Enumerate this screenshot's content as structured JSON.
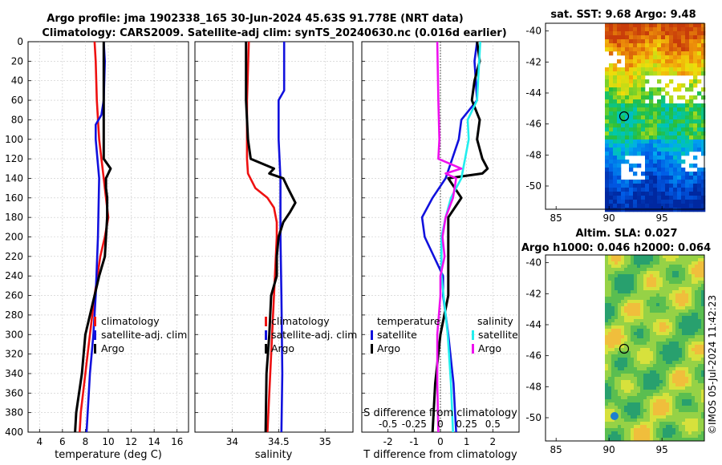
{
  "title": {
    "line1": "Argo profile: jma 1902338_165 30-Jun-2024 45.63S 91.778E (NRT data)",
    "line2": "Climatology: CARS2009. Satellite-adj clim: synTS_20240630.nc (0.016d earlier)"
  },
  "colors": {
    "climatology": "#ee1111",
    "satellite": "#1111dd",
    "argo": "#000000",
    "sal_satellite": "#22eeee",
    "sal_argo": "#ee11ee"
  },
  "depth_axis": {
    "ticks": [
      "0",
      "20",
      "40",
      "60",
      "80",
      "100",
      "120",
      "140",
      "160",
      "180",
      "200",
      "220",
      "240",
      "260",
      "280",
      "300",
      "320",
      "340",
      "360",
      "380",
      "400"
    ]
  },
  "chart_data": [
    {
      "type": "line",
      "name": "temperature",
      "xlabel": "temperature (deg C)",
      "ylabel": "depth",
      "xlim": [
        3,
        17
      ],
      "ylim": [
        400,
        0
      ],
      "xticks": [
        4,
        6,
        8,
        10,
        12,
        14,
        16
      ],
      "xtick_labels": [
        "4",
        "6",
        "8",
        "10",
        "12",
        "14",
        "16"
      ],
      "legend": [
        "climatology",
        "satellite-adj. clim",
        "Argo"
      ],
      "series": [
        {
          "name": "climatology",
          "color": "#ee1111",
          "depth": [
            0,
            20,
            60,
            100,
            140,
            160,
            180,
            200,
            220,
            260,
            300,
            340,
            380,
            400
          ],
          "values": [
            8.8,
            8.9,
            9.0,
            9.2,
            9.6,
            9.8,
            10.0,
            9.7,
            9.3,
            8.8,
            8.4,
            8.0,
            7.6,
            7.5
          ]
        },
        {
          "name": "satellite-adj. clim",
          "color": "#1111dd",
          "depth": [
            0,
            20,
            60,
            75,
            85,
            100,
            140,
            200,
            260,
            300,
            340,
            400
          ],
          "values": [
            9.6,
            9.7,
            9.6,
            9.4,
            8.9,
            8.9,
            9.2,
            9.1,
            8.9,
            8.7,
            8.4,
            8.1
          ]
        },
        {
          "name": "Argo",
          "color": "#000000",
          "depth": [
            0,
            20,
            60,
            100,
            120,
            130,
            135,
            140,
            150,
            160,
            180,
            200,
            220,
            240,
            260,
            300,
            340,
            380,
            400
          ],
          "values": [
            9.6,
            9.6,
            9.6,
            9.6,
            9.6,
            10.2,
            10.0,
            9.8,
            9.8,
            9.9,
            9.9,
            9.8,
            9.7,
            9.2,
            8.8,
            8.0,
            7.7,
            7.2,
            7.1
          ]
        }
      ]
    },
    {
      "type": "line",
      "name": "salinity",
      "xlabel": "salinity",
      "ylabel": "depth",
      "xlim": [
        33.6,
        35.3
      ],
      "ylim": [
        400,
        0
      ],
      "xticks": [
        34,
        34.5,
        35
      ],
      "xtick_labels": [
        "34",
        "34.5",
        "35"
      ],
      "legend": [
        "climatology",
        "satellite-adj. clim",
        "Argo"
      ],
      "series": [
        {
          "name": "climatology",
          "color": "#ee1111",
          "depth": [
            0,
            60,
            100,
            120,
            135,
            150,
            160,
            170,
            185,
            200,
            240,
            300,
            360,
            400
          ],
          "values": [
            34.18,
            34.16,
            34.16,
            34.16,
            34.17,
            34.25,
            34.38,
            34.45,
            34.48,
            34.48,
            34.46,
            34.43,
            34.4,
            34.38
          ]
        },
        {
          "name": "satellite-adj. clim",
          "color": "#1111dd",
          "depth": [
            0,
            20,
            50,
            60,
            80,
            100,
            140,
            200,
            260,
            340,
            400
          ],
          "values": [
            34.56,
            34.56,
            34.56,
            34.5,
            34.5,
            34.5,
            34.52,
            34.52,
            34.53,
            34.54,
            34.53
          ]
        },
        {
          "name": "Argo",
          "color": "#000000",
          "depth": [
            0,
            60,
            100,
            120,
            130,
            135,
            140,
            150,
            165,
            175,
            185,
            200,
            220,
            240,
            260,
            300,
            340,
            400
          ],
          "values": [
            34.15,
            34.15,
            34.17,
            34.2,
            34.45,
            34.4,
            34.55,
            34.6,
            34.68,
            34.62,
            34.55,
            34.5,
            34.48,
            34.48,
            34.42,
            34.4,
            34.37,
            34.36
          ]
        }
      ]
    },
    {
      "type": "line",
      "name": "difference",
      "xlabel": "T difference from climatology",
      "xlabel_top": "S difference from climatology",
      "ylabel": "depth",
      "xlim": [
        -3,
        3
      ],
      "ylim": [
        400,
        0
      ],
      "xticks": [
        -2,
        -1,
        0,
        1,
        2
      ],
      "xtick_labels": [
        "-2",
        "-1",
        "0",
        "1",
        "2"
      ],
      "s_xticks": [
        -0.5,
        -0.25,
        0,
        0.25,
        0.5
      ],
      "s_xtick_labels": [
        "-0.5",
        "-0.25",
        "0",
        "0.25",
        "0.5"
      ],
      "s_xlim": [
        -0.75,
        0.75
      ],
      "legend_temperature": {
        "title": "temperature",
        "items": [
          "satellite",
          "Argo"
        ]
      },
      "legend_salinity": {
        "title": "salinity",
        "items": [
          "satellite",
          "Argo"
        ]
      },
      "series": [
        {
          "name": "temperature satellite",
          "color": "#1111dd",
          "axis": "T",
          "depth": [
            0,
            20,
            60,
            80,
            100,
            140,
            160,
            180,
            200,
            240,
            260,
            300,
            350,
            400
          ],
          "values": [
            1.4,
            1.3,
            1.4,
            0.8,
            0.7,
            0.2,
            -0.3,
            -0.7,
            -0.6,
            0.1,
            0.1,
            0.3,
            0.5,
            0.6
          ]
        },
        {
          "name": "temperature Argo",
          "color": "#000000",
          "axis": "T",
          "depth": [
            0,
            20,
            40,
            60,
            80,
            100,
            120,
            130,
            135,
            140,
            160,
            180,
            200,
            230,
            260,
            300,
            350,
            400
          ],
          "values": [
            1.4,
            1.5,
            1.3,
            1.2,
            1.5,
            1.4,
            1.6,
            1.8,
            1.6,
            0.3,
            0.8,
            0.3,
            0.3,
            0.3,
            0.3,
            0.0,
            -0.2,
            -0.3
          ]
        },
        {
          "name": "salinity satellite",
          "color": "#22eeee",
          "axis": "S",
          "depth": [
            0,
            20,
            60,
            80,
            100,
            140,
            160,
            180,
            200,
            240,
            260,
            300,
            350,
            400
          ],
          "values": [
            0.38,
            0.37,
            0.35,
            0.26,
            0.27,
            0.2,
            0.1,
            0.05,
            0.01,
            0.01,
            0.03,
            0.07,
            0.1,
            0.12
          ]
        },
        {
          "name": "salinity Argo",
          "color": "#ee11ee",
          "axis": "S",
          "depth": [
            0,
            60,
            100,
            120,
            130,
            135,
            140,
            160,
            180,
            200,
            220,
            240,
            260,
            300,
            350,
            400
          ],
          "values": [
            -0.03,
            -0.02,
            -0.01,
            -0.02,
            0.2,
            0.05,
            0.15,
            0.12,
            0.05,
            0.02,
            0.04,
            0.0,
            0.0,
            -0.03,
            -0.03,
            -0.02
          ]
        }
      ]
    },
    {
      "type": "heatmap",
      "name": "sst map",
      "title": "sat. SST: 9.68  Argo: 9.48",
      "xlim": [
        84,
        99
      ],
      "ylim": [
        -51.5,
        -39.5
      ],
      "xticks": [
        85,
        90,
        95
      ],
      "xtick_labels": [
        "85",
        "90",
        "95"
      ],
      "yticks": [
        -40,
        -42,
        -44,
        -46,
        -48,
        -50
      ],
      "ytick_labels": [
        "-40",
        "-42",
        "-44",
        "-46",
        "-48",
        "-50"
      ],
      "marker": {
        "lon": 91.778,
        "lat": -45.63
      }
    },
    {
      "type": "heatmap",
      "name": "sla map",
      "title_line1": "Altim. SLA: 0.027",
      "title_line2": "Argo h1000: 0.046 h2000: 0.064",
      "xlim": [
        84,
        99
      ],
      "ylim": [
        -51.5,
        -39.5
      ],
      "xticks": [
        85,
        90,
        95
      ],
      "xtick_labels": [
        "85",
        "90",
        "95"
      ],
      "yticks": [
        -40,
        -42,
        -44,
        -46,
        -48,
        -50
      ],
      "ytick_labels": [
        "-40",
        "-42",
        "-44",
        "-46",
        "-48",
        "-50"
      ],
      "marker": {
        "lon": 91.778,
        "lat": -45.63
      }
    }
  ],
  "watermark": "©IMOS 05-Jul-2024 11:42:23"
}
